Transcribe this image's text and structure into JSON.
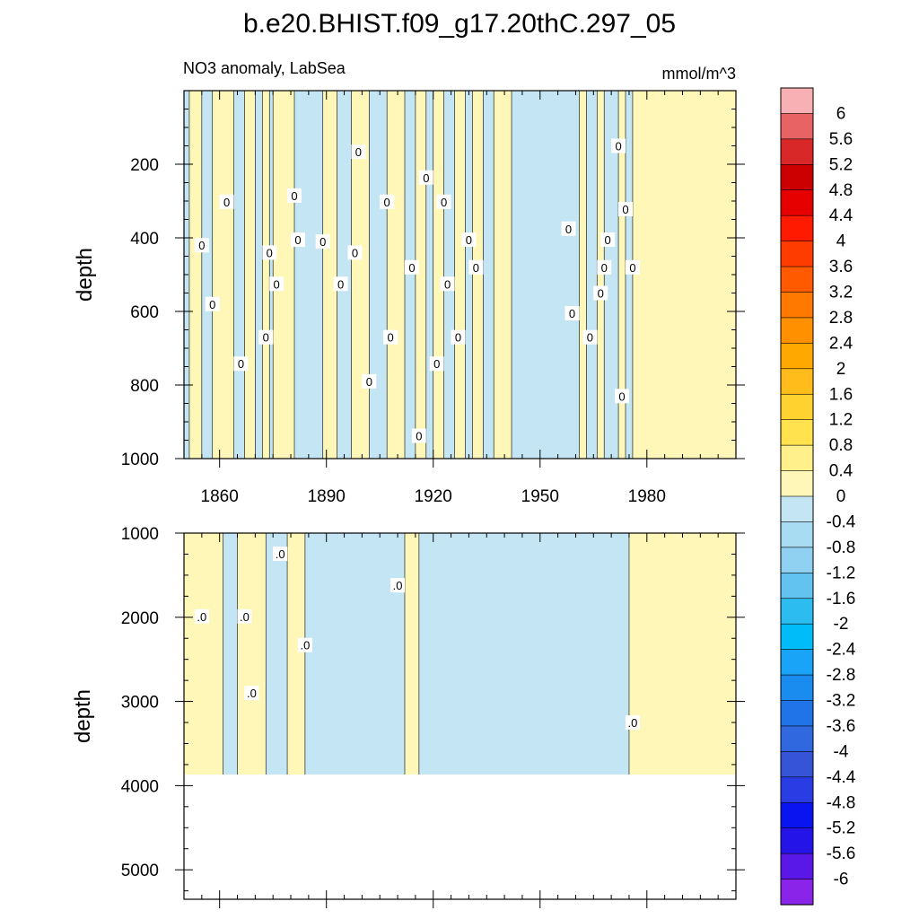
{
  "title": "b.e20.BHIST.f09_g17.20thC.297_05",
  "subtitle_left": "NO3 anomaly, LabSea",
  "units": "mmol/m^3",
  "colorbar": {
    "levels": [
      "6",
      "5.6",
      "5.2",
      "4.8",
      "4.4",
      "4",
      "3.6",
      "3.2",
      "2.8",
      "2.4",
      "2",
      "1.6",
      "1.2",
      "0.8",
      "0.4",
      "0",
      "-0.4",
      "-0.8",
      "-1.2",
      "-1.6",
      "-2",
      "-2.4",
      "-2.8",
      "-3.2",
      "-3.6",
      "-4",
      "-4.4",
      "-4.8",
      "-5.2",
      "-5.6",
      "-6"
    ],
    "colors": [
      "#f8b0b4",
      "#e86464",
      "#d82828",
      "#cc0000",
      "#e60000",
      "#ff1a00",
      "#ff3c00",
      "#ff5a00",
      "#ff7800",
      "#ff9000",
      "#ffa800",
      "#ffbc1a",
      "#ffd230",
      "#ffe24e",
      "#fff08c",
      "#fff7b8",
      "#c4e6f4",
      "#a8dcf2",
      "#90d0f0",
      "#62c2f0",
      "#2cbcf0",
      "#00bcf8",
      "#1aa4f8",
      "#1a8cf0",
      "#2074e8",
      "#3068e0",
      "#3654d8",
      "#2a3ce4",
      "#0a14f0",
      "#2414e8",
      "#5a18e8",
      "#8a24e8"
    ]
  },
  "chart_data": [
    {
      "type": "heatmap",
      "panel": "upper",
      "ylabel": "depth",
      "xlim": [
        1850,
        2005
      ],
      "ylim": [
        1000,
        0
      ],
      "x_ticks": [
        "1860",
        "1890",
        "1920",
        "1950",
        "1980"
      ],
      "y_ticks": [
        "200",
        "400",
        "600",
        "800",
        "1000"
      ],
      "contour_labels": [
        "0"
      ],
      "columns": [
        {
          "x": [
            1850,
            1851.5
          ],
          "sign": "neg"
        },
        {
          "x": [
            1851.5,
            1855
          ],
          "sign": "pos"
        },
        {
          "x": [
            1855,
            1858
          ],
          "sign": "neg"
        },
        {
          "x": [
            1858,
            1864
          ],
          "sign": "pos"
        },
        {
          "x": [
            1864,
            1867
          ],
          "sign": "neg"
        },
        {
          "x": [
            1867,
            1870
          ],
          "sign": "pos"
        },
        {
          "x": [
            1870,
            1872
          ],
          "sign": "neg"
        },
        {
          "x": [
            1872,
            1874
          ],
          "sign": "pos"
        },
        {
          "x": [
            1874,
            1875
          ],
          "sign": "neg"
        },
        {
          "x": [
            1875,
            1881
          ],
          "sign": "pos"
        },
        {
          "x": [
            1881,
            1889
          ],
          "sign": "neg"
        },
        {
          "x": [
            1889,
            1893
          ],
          "sign": "pos"
        },
        {
          "x": [
            1893,
            1897
          ],
          "sign": "neg"
        },
        {
          "x": [
            1897,
            1902
          ],
          "sign": "pos"
        },
        {
          "x": [
            1902,
            1907
          ],
          "sign": "neg"
        },
        {
          "x": [
            1907,
            1912
          ],
          "sign": "pos"
        },
        {
          "x": [
            1912,
            1915
          ],
          "sign": "neg"
        },
        {
          "x": [
            1915,
            1918
          ],
          "sign": "pos"
        },
        {
          "x": [
            1918,
            1920
          ],
          "sign": "neg"
        },
        {
          "x": [
            1920,
            1923
          ],
          "sign": "pos"
        },
        {
          "x": [
            1923,
            1926
          ],
          "sign": "neg"
        },
        {
          "x": [
            1926,
            1929
          ],
          "sign": "pos"
        },
        {
          "x": [
            1929,
            1931
          ],
          "sign": "neg"
        },
        {
          "x": [
            1931,
            1934
          ],
          "sign": "pos"
        },
        {
          "x": [
            1934,
            1937
          ],
          "sign": "neg"
        },
        {
          "x": [
            1937,
            1942
          ],
          "sign": "pos"
        },
        {
          "x": [
            1942,
            1961
          ],
          "sign": "neg"
        },
        {
          "x": [
            1961,
            1963
          ],
          "sign": "pos"
        },
        {
          "x": [
            1963,
            1966
          ],
          "sign": "neg"
        },
        {
          "x": [
            1966,
            1968
          ],
          "sign": "pos"
        },
        {
          "x": [
            1968,
            1972
          ],
          "sign": "neg"
        },
        {
          "x": [
            1972,
            1974
          ],
          "sign": "pos"
        },
        {
          "x": [
            1974,
            1976
          ],
          "sign": "neg"
        },
        {
          "x": [
            1976,
            2005
          ],
          "sign": "pos"
        }
      ]
    },
    {
      "type": "heatmap",
      "panel": "lower",
      "ylabel": "depth",
      "xlim": [
        1850,
        2005
      ],
      "ylim": [
        5350,
        1000
      ],
      "x_ticks": [],
      "y_ticks": [
        "1000",
        "2000",
        "3000",
        "4000",
        "5000"
      ],
      "ocean_floor_depth": 3870,
      "contour_labels": [
        ".0"
      ],
      "columns": [
        {
          "x": [
            1850,
            1861
          ],
          "sign": "pos"
        },
        {
          "x": [
            1861,
            1865
          ],
          "sign": "neg"
        },
        {
          "x": [
            1865,
            1873
          ],
          "sign": "pos"
        },
        {
          "x": [
            1873,
            1879
          ],
          "sign": "neg"
        },
        {
          "x": [
            1879,
            1884
          ],
          "sign": "pos"
        },
        {
          "x": [
            1884,
            1912
          ],
          "sign": "neg"
        },
        {
          "x": [
            1912,
            1916
          ],
          "sign": "pos"
        },
        {
          "x": [
            1916,
            1975
          ],
          "sign": "neg"
        },
        {
          "x": [
            1975,
            2005
          ],
          "sign": "pos"
        }
      ]
    }
  ]
}
